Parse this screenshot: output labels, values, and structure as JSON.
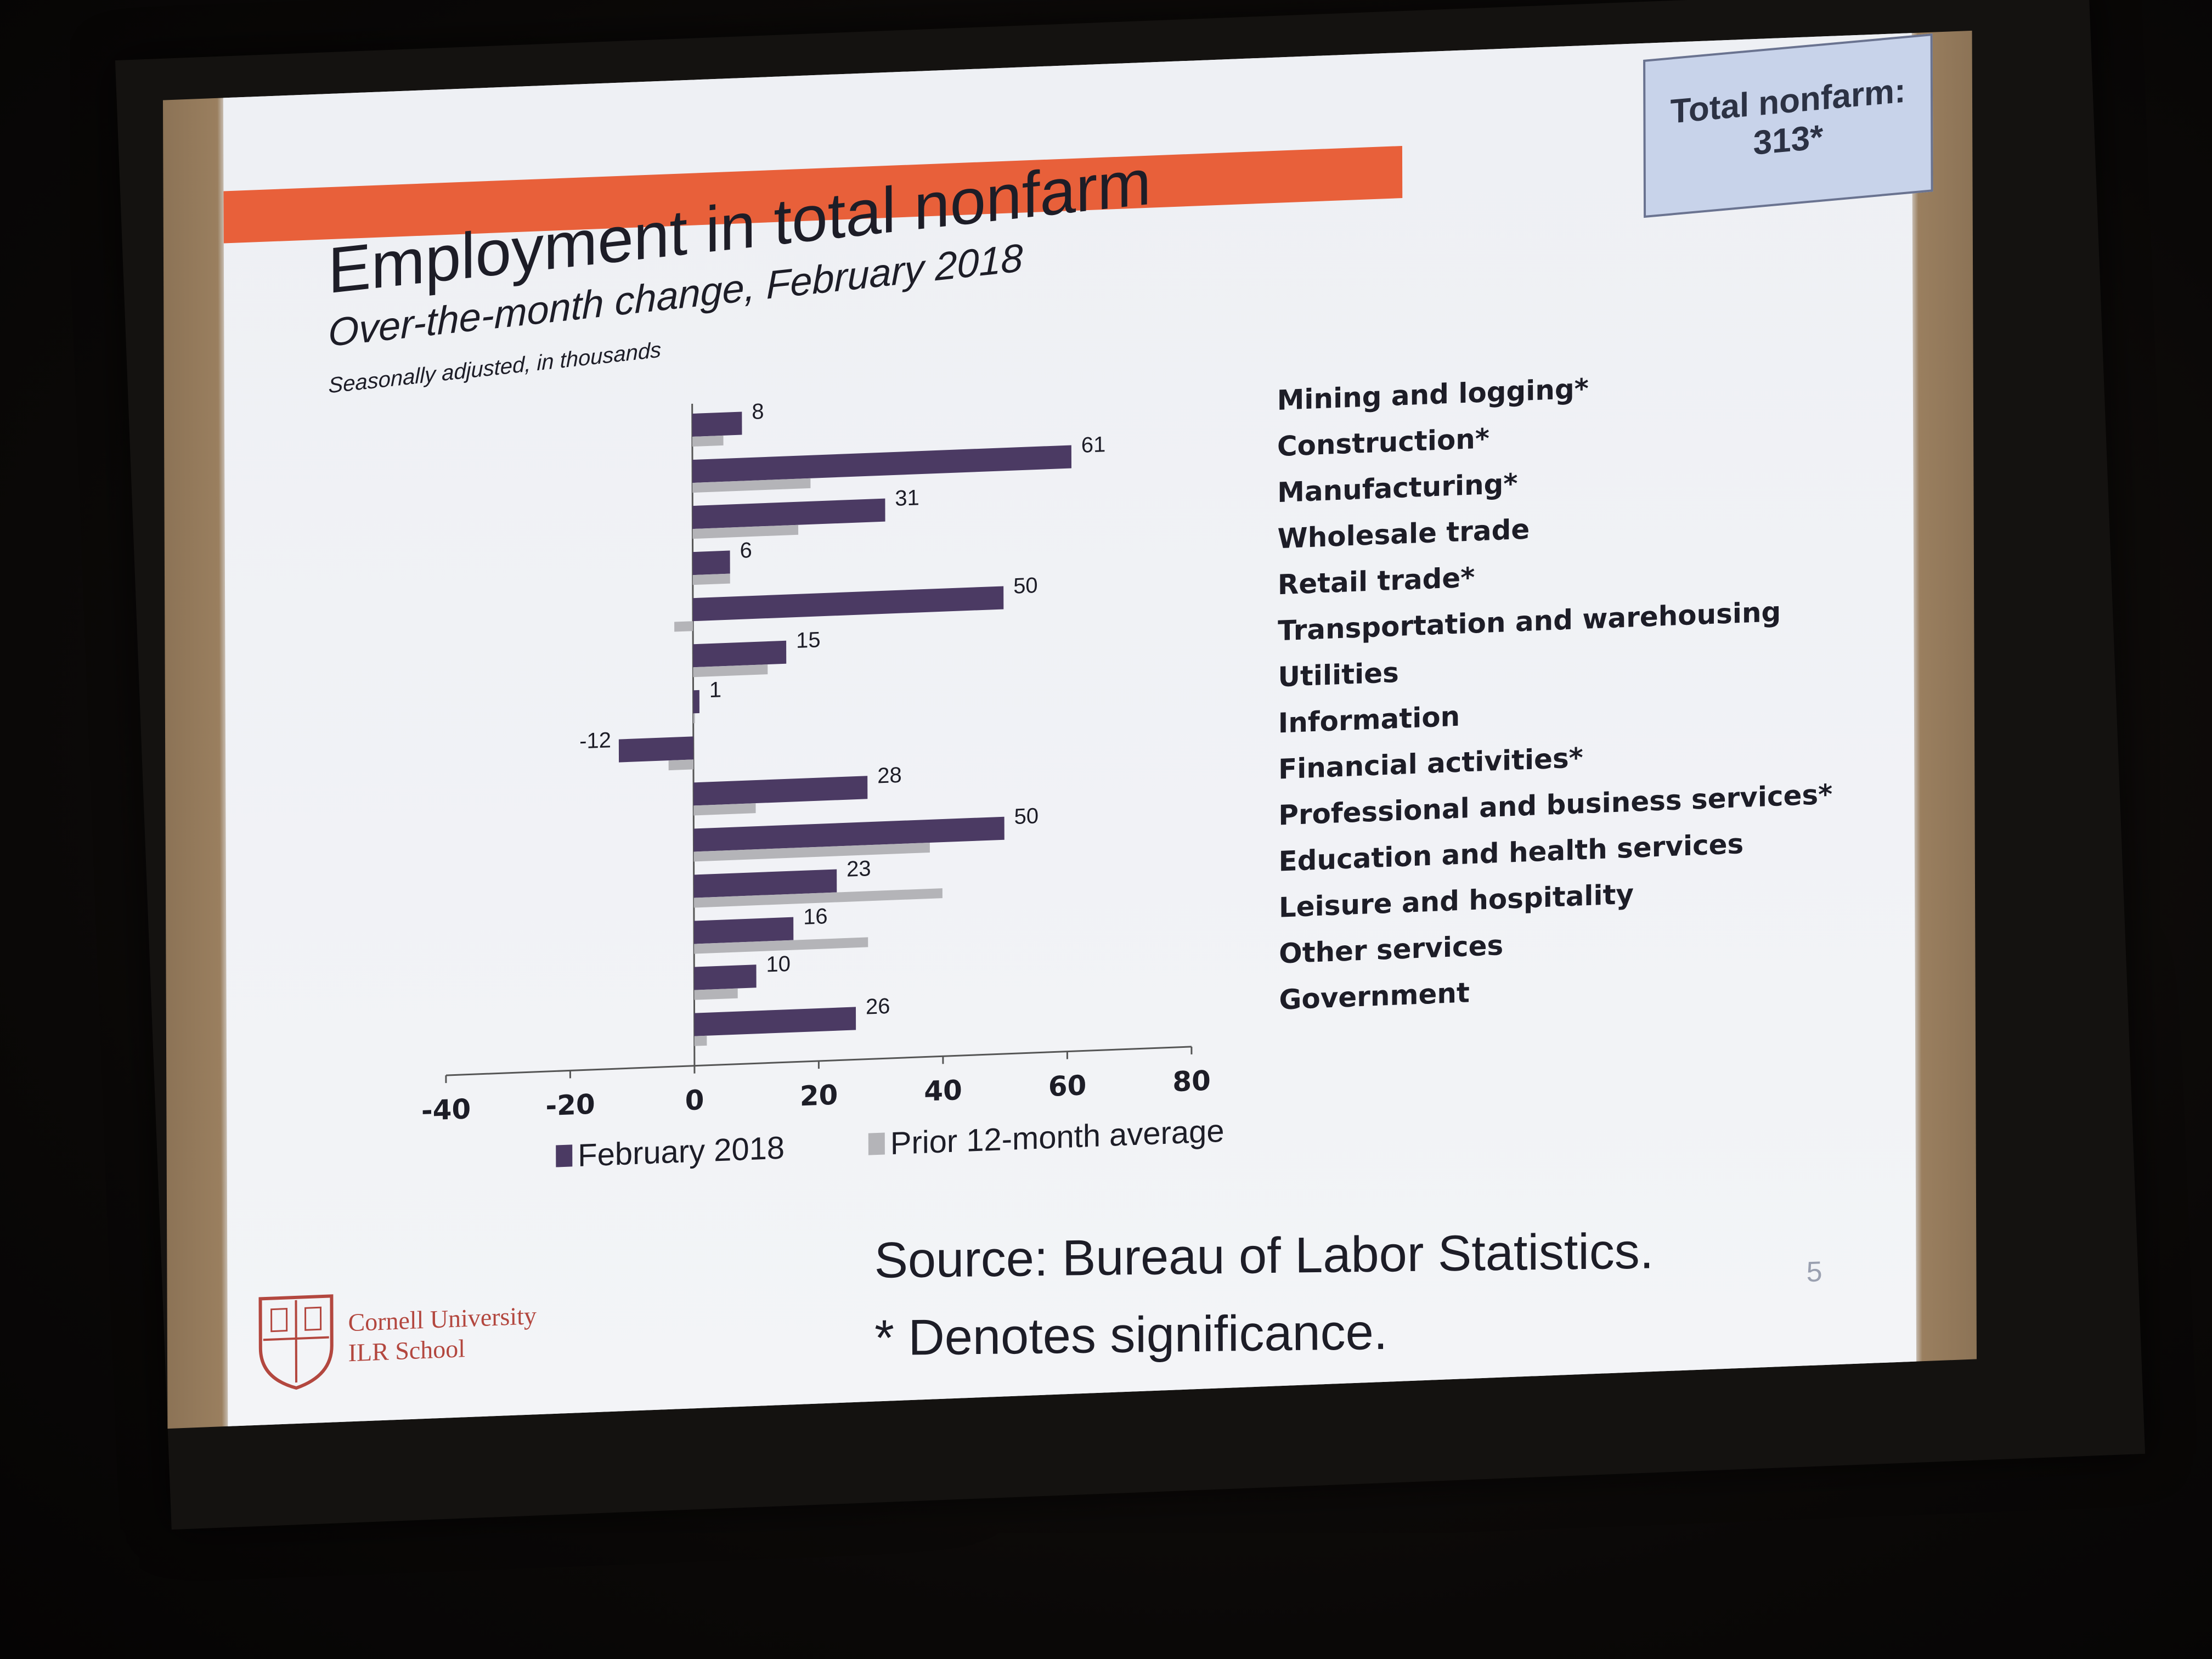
{
  "slide": {
    "title": "Employment in total nonfarm",
    "subtitle": "Over-the-month change, February 2018",
    "note": "Seasonally adjusted, in thousands",
    "total_box": {
      "label": "Total nonfarm:",
      "value": "313*"
    },
    "source": "Source: Bureau of Labor Statistics.",
    "significance": "* Denotes significance.",
    "slide_number": "5",
    "logo_text": {
      "line1": "Cornell University",
      "line2": "ILR School"
    }
  },
  "colors": {
    "accent": "#e8603a",
    "series_feb": "#4b3a63",
    "series_avg": "#b4b4b8",
    "total_box_bg": "#c8d3ea"
  },
  "chart_data": {
    "type": "bar",
    "orientation": "horizontal",
    "categories": [
      "Mining and logging*",
      "Construction*",
      "Manufacturing*",
      "Wholesale trade",
      "Retail trade*",
      "Transportation and warehousing",
      "Utilities",
      "Information",
      "Financial activities*",
      "Professional and business services*",
      "Education and health services",
      "Leisure and hospitality",
      "Other services",
      "Government"
    ],
    "series": [
      {
        "name": "February 2018",
        "values": [
          8,
          61,
          31,
          6,
          50,
          15,
          1,
          -12,
          28,
          50,
          23,
          16,
          10,
          26
        ]
      },
      {
        "name": "Prior 12-month average",
        "values": [
          5,
          19,
          17,
          6,
          -3,
          12,
          0,
          -4,
          10,
          38,
          40,
          28,
          7,
          2
        ]
      }
    ],
    "data_labels": [
      "8",
      "61",
      "31",
      "6",
      "50",
      "15",
      "1",
      "-12",
      "28",
      "50",
      "23",
      "16",
      "10",
      "26"
    ],
    "xlim": [
      -40,
      80
    ],
    "xticks": [
      "-40",
      "-20",
      "0",
      "20",
      "40",
      "60",
      "80"
    ],
    "legend_position": "bottom"
  }
}
